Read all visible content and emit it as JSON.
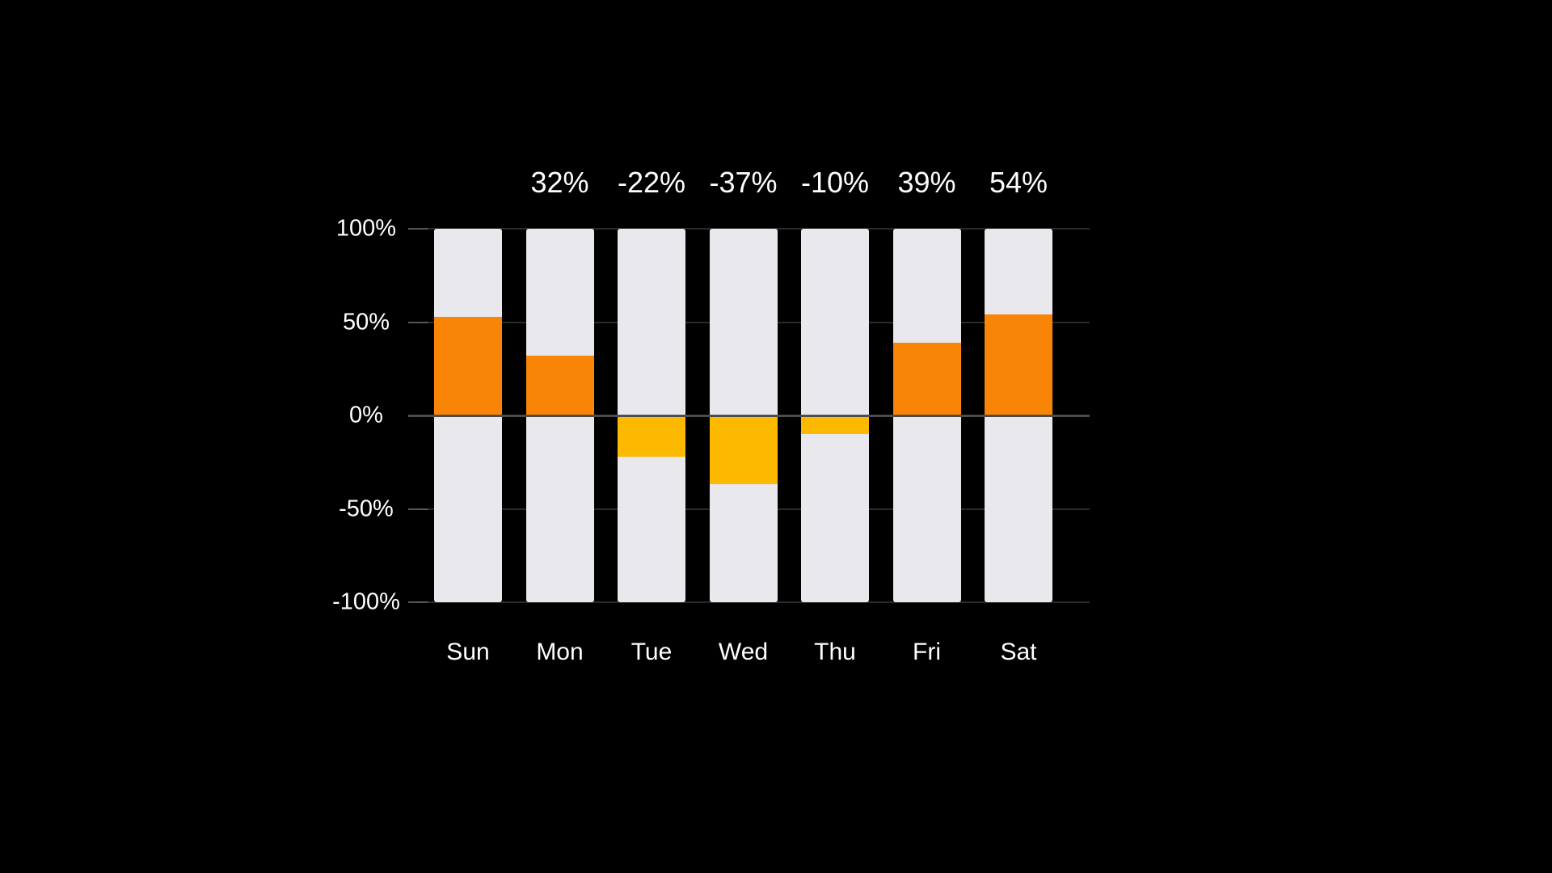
{
  "chart_data": {
    "type": "bar",
    "title": "",
    "categories": [
      "Sun",
      "Mon",
      "Tue",
      "Wed",
      "Thu",
      "Fri",
      "Sat"
    ],
    "values": [
      53,
      32,
      -22,
      -37,
      -10,
      39,
      54
    ],
    "bar_labels": [
      "",
      "32%",
      "-22%",
      "-37%",
      "-10%",
      "39%",
      "54%"
    ],
    "xlabel": "",
    "ylabel": "",
    "ylim": [
      -100,
      100
    ],
    "y_axis_ticks": [
      {
        "value": 100,
        "label": "100%"
      },
      {
        "value": 50,
        "label": "50%"
      },
      {
        "value": 0,
        "label": "0%"
      },
      {
        "value": -50,
        "label": "-50%"
      },
      {
        "value": -100,
        "label": "-100%"
      }
    ],
    "legend": "none",
    "grid": "horizontal-faint",
    "column_background_full_range": true,
    "colors": {
      "page_background": "#000000",
      "positive_segment": "#F98506",
      "negative_segment": "#FCB900",
      "column_background": "#E9E8EC",
      "zero_line": "#4D4D4D",
      "gridline": "#2A2A2A",
      "tick": "#565656",
      "text": "#FFFFFF"
    }
  }
}
